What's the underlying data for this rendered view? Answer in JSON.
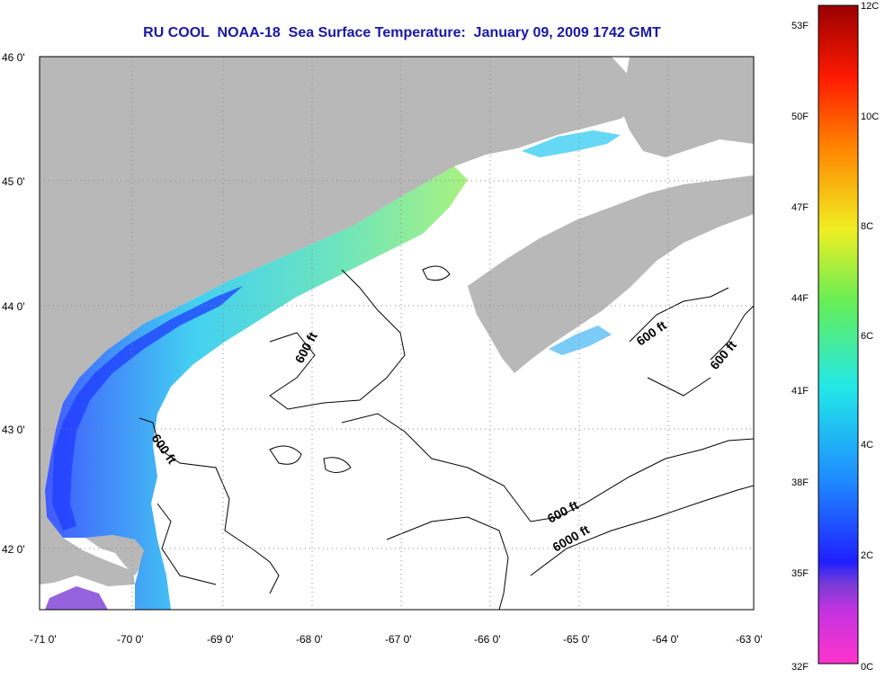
{
  "title": "RU COOL  NOAA-18  Sea Surface Temperature:  January 09, 2009 1742 GMT",
  "axes": {
    "lon_ticks": [
      "-71 0'",
      "-70 0'",
      "-69 0'",
      "-68 0'",
      "-67 0'",
      "-66 0'",
      "-65 0'",
      "-64 0'",
      "-63 0'"
    ],
    "lat_ticks": [
      "46 0'",
      "45 0'",
      "44 0'",
      "43 0'",
      "42 0'"
    ],
    "lon_range": [
      -71,
      -63
    ],
    "lat_range": [
      41.5,
      46
    ]
  },
  "contour_labels": [
    "600 ft",
    "600 ft",
    "600 ft",
    "600 ft",
    "6000 ft"
  ],
  "colorbar": {
    "fahrenheit_labels": [
      "53F",
      "50F",
      "47F",
      "44F",
      "41F",
      "38F",
      "35F",
      "32F"
    ],
    "celsius_labels": [
      "12C",
      "10C",
      "8C",
      "6C",
      "4C",
      "2C",
      "0C"
    ],
    "colors": {
      "magenta": "#ff33cc",
      "violet": "#7a3cd6",
      "blue": "#1f1fff",
      "cyan": "#22e8e8",
      "green": "#66ee55",
      "yellow": "#f0ee22",
      "orange": "#ff8800",
      "red": "#ff1a00",
      "darkred": "#9a0000"
    }
  },
  "colors": {
    "land": "#b8b8b8",
    "water": "#ffffff",
    "title": "#1818a8",
    "grid": "#888888"
  }
}
